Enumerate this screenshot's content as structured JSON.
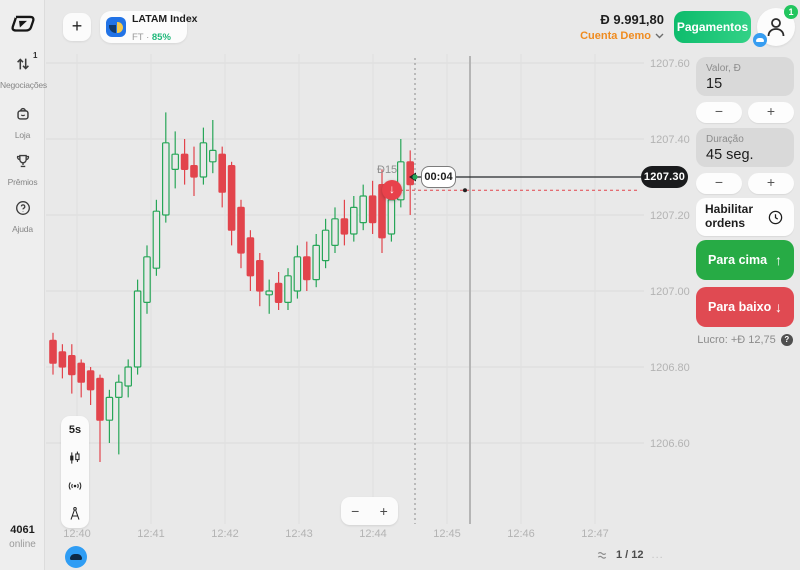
{
  "topbar": {
    "add_button": "+",
    "asset_tab": {
      "title": "LATAM Index",
      "sub_prefix": "FT ·",
      "payout": "85%"
    },
    "balance": {
      "amount": "Đ 9.991,80",
      "account_label": "Cuenta Demo"
    },
    "payments_button_label": "Pagamentos",
    "profile": {
      "notification_badge": "1"
    }
  },
  "sidebar": {
    "nav": [
      {
        "label": "Negociações",
        "badge": "1"
      },
      {
        "label": "Loja"
      },
      {
        "label": "Prêmios"
      },
      {
        "label": "Ajuda"
      }
    ],
    "online_count": "4061",
    "online_label": "online"
  },
  "chart_tools": {
    "timeframe_label": "5s"
  },
  "trade_marker": {
    "stake_label": "Đ15",
    "direction_arrow": "↓",
    "countdown": "00:04",
    "price_badge": "1207.30"
  },
  "zoom_controls": {
    "out": "−",
    "in": "+"
  },
  "pagination": {
    "label": "1 / 12",
    "more": "..."
  },
  "trade_panel": {
    "amount_label": "Valor, Đ",
    "amount_value": "15",
    "minus": "−",
    "plus": "+",
    "duration_label": "Duração",
    "duration_value": "45 seg.",
    "orders_label": "Habilitar ordens",
    "up_label": "Para cima",
    "up_arrow": "↑",
    "down_label": "Para baixo",
    "down_arrow": "↓",
    "profit_label": "Lucro: +Đ 12,75",
    "help": "?"
  },
  "colors": {
    "up": "#27a658",
    "down": "#e2444c",
    "grid": "#dcdcdc",
    "axis_text": "#b3b3b3",
    "accent_orange": "#ef8b1f",
    "badge_bg": "#1a1b1d"
  },
  "chart_data": {
    "type": "candlestick",
    "symbol": "LATAM Index",
    "timeframe": "5s",
    "current_price": 1207.3,
    "entry_price": 1207.265,
    "stake": 15,
    "direction": "down",
    "countdown": "00:04",
    "grid": true,
    "ylim": [
      1206.45,
      1207.65
    ],
    "y_ticks": [
      1207.6,
      1207.4,
      1207.2,
      1207.0,
      1206.8,
      1206.6
    ],
    "x_ticks": [
      "12:40",
      "12:41",
      "12:42",
      "12:43",
      "12:44",
      "12:45",
      "12:46",
      "12:47"
    ],
    "candles": [
      [
        1206.87,
        1206.89,
        1206.78,
        1206.81
      ],
      [
        1206.84,
        1206.86,
        1206.77,
        1206.8
      ],
      [
        1206.83,
        1206.86,
        1206.73,
        1206.78
      ],
      [
        1206.81,
        1206.82,
        1206.72,
        1206.76
      ],
      [
        1206.79,
        1206.8,
        1206.7,
        1206.74
      ],
      [
        1206.77,
        1206.78,
        1206.55,
        1206.66
      ],
      [
        1206.66,
        1206.74,
        1206.6,
        1206.72
      ],
      [
        1206.72,
        1206.78,
        1206.57,
        1206.76
      ],
      [
        1206.75,
        1206.82,
        1206.72,
        1206.8
      ],
      [
        1206.8,
        1207.03,
        1206.78,
        1207.0
      ],
      [
        1206.97,
        1207.12,
        1206.94,
        1207.09
      ],
      [
        1207.06,
        1207.24,
        1207.04,
        1207.21
      ],
      [
        1207.2,
        1207.47,
        1207.18,
        1207.39
      ],
      [
        1207.32,
        1207.42,
        1207.27,
        1207.36
      ],
      [
        1207.36,
        1207.4,
        1207.28,
        1207.32
      ],
      [
        1207.33,
        1207.38,
        1207.25,
        1207.3
      ],
      [
        1207.3,
        1207.43,
        1207.28,
        1207.39
      ],
      [
        1207.34,
        1207.45,
        1207.31,
        1207.37
      ],
      [
        1207.36,
        1207.38,
        1207.22,
        1207.26
      ],
      [
        1207.33,
        1207.34,
        1207.12,
        1207.16
      ],
      [
        1207.22,
        1207.24,
        1207.06,
        1207.1
      ],
      [
        1207.14,
        1207.16,
        1207.0,
        1207.04
      ],
      [
        1207.08,
        1207.1,
        1206.96,
        1207.0
      ],
      [
        1206.99,
        1207.03,
        1206.94,
        1207.0
      ],
      [
        1207.02,
        1207.05,
        1206.95,
        1206.97
      ],
      [
        1206.97,
        1207.06,
        1206.95,
        1207.04
      ],
      [
        1207.0,
        1207.12,
        1206.98,
        1207.09
      ],
      [
        1207.09,
        1207.13,
        1207.0,
        1207.03
      ],
      [
        1207.03,
        1207.15,
        1207.01,
        1207.12
      ],
      [
        1207.08,
        1207.19,
        1207.06,
        1207.16
      ],
      [
        1207.12,
        1207.22,
        1207.1,
        1207.19
      ],
      [
        1207.19,
        1207.24,
        1207.12,
        1207.15
      ],
      [
        1207.15,
        1207.25,
        1207.13,
        1207.22
      ],
      [
        1207.18,
        1207.28,
        1207.16,
        1207.25
      ],
      [
        1207.25,
        1207.29,
        1207.15,
        1207.18
      ],
      [
        1207.28,
        1207.32,
        1207.1,
        1207.14
      ],
      [
        1207.15,
        1207.27,
        1207.13,
        1207.24
      ],
      [
        1207.24,
        1207.4,
        1207.22,
        1207.34
      ],
      [
        1207.34,
        1207.37,
        1207.2,
        1207.28
      ]
    ]
  }
}
